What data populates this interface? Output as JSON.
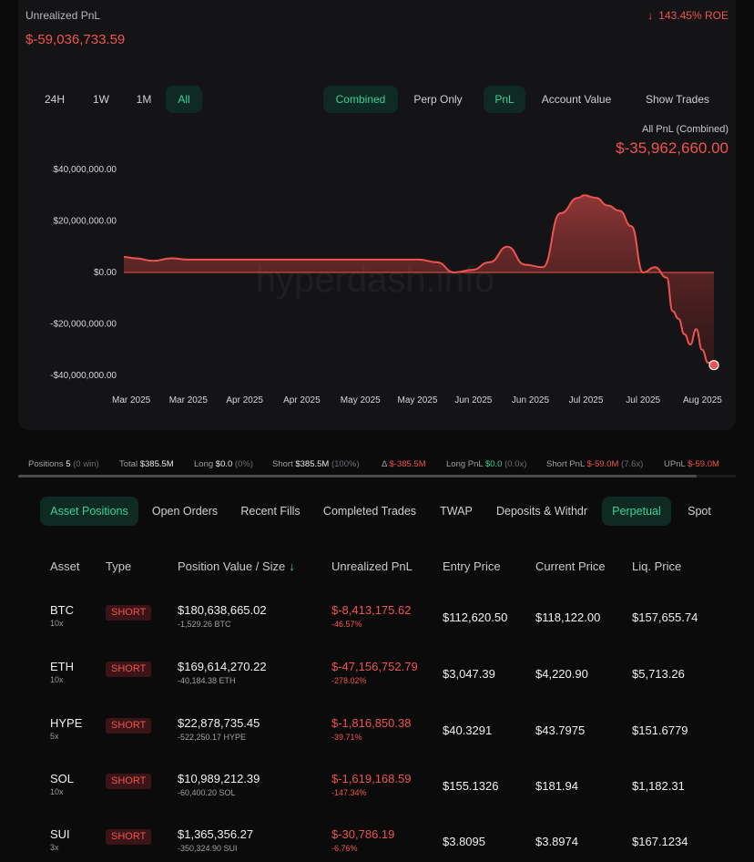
{
  "summary": {
    "unrealized_label": "Unrealized PnL",
    "unrealized_value": "$-59,036,733.59",
    "roe_arrow": "↓",
    "roe": "143.45% ROE"
  },
  "range_filters": [
    "24H",
    "1W",
    "1M",
    "All"
  ],
  "active_range": "All",
  "view_filters": [
    "Combined",
    "Perp Only"
  ],
  "metric_filters": [
    "PnL",
    "Account Value"
  ],
  "show_trades_label": "Show Trades",
  "chart_header": {
    "title": "All PnL (Combined)",
    "value": "$-35,962,660.00"
  },
  "chart_data": {
    "type": "area",
    "y_tick_labels": [
      "$40,000,000.00",
      "$20,000,000.00",
      "$0.00",
      "-$20,000,000.00",
      "-$40,000,000.00"
    ],
    "y_ticks": [
      40000000,
      20000000,
      0,
      -20000000,
      -40000000
    ],
    "ylim": [
      -40000000,
      40000000
    ],
    "x_tick_labels": [
      "Mar 2025",
      "Mar 2025",
      "Apr 2025",
      "Apr 2025",
      "May 2025",
      "May 2025",
      "Jun 2025",
      "Jun 2025",
      "Jul 2025",
      "Jul 2025",
      "Aug 2025"
    ],
    "x": [
      0,
      2,
      5,
      8,
      11,
      14,
      17,
      20,
      23,
      26,
      29,
      32,
      35,
      38,
      41,
      44,
      47,
      50,
      53,
      56,
      59,
      62,
      65,
      68,
      71,
      74,
      77,
      78,
      80,
      82,
      84,
      86,
      88,
      90,
      92,
      93,
      94,
      95,
      96,
      97,
      98,
      99,
      100
    ],
    "y": [
      6000000,
      5500000,
      4500000,
      5500000,
      5000000,
      5000000,
      5000000,
      5000000,
      5000000,
      5000000,
      5000000,
      5000000,
      5000000,
      5000000,
      5000000,
      5000000,
      5000000,
      5000000,
      4000000,
      0,
      1000000,
      4000000,
      10000000,
      3000000,
      2000000,
      23000000,
      29000000,
      30000000,
      29000000,
      26000000,
      24000000,
      18000000,
      0,
      2000000,
      -2000000,
      -15000000,
      -18000000,
      -24000000,
      -28000000,
      -22000000,
      -30000000,
      -35000000,
      -36000000
    ],
    "series": [
      {
        "name": "All PnL (Combined)",
        "color": "#ef5350"
      }
    ],
    "x_last_label": "Aug 2025",
    "final_value": -35962660,
    "watermark": "hyperdash.info"
  },
  "stats": {
    "positions_label": "Positions",
    "positions_value": "5",
    "positions_sub": "(0 win)",
    "total_label": "Total",
    "total_value": "$385.5M",
    "long_label": "Long",
    "long_value": "$0.0",
    "long_pct": "(0%)",
    "short_label": "Short",
    "short_value": "$385.5M",
    "short_pct": "(100%)",
    "delta_label": "Δ",
    "delta_value": "$-385.5M",
    "long_pnl_label": "Long PnL",
    "long_pnl_value": "$0.0",
    "long_pnl_sub": "(0.0x)",
    "short_pnl_label": "Short PnL",
    "short_pnl_value": "$-59.0M",
    "short_pnl_sub": "(7.6x)",
    "upnl_label": "UPnL",
    "upnl_value": "$-59.0M"
  },
  "tabs": [
    "Asset Positions",
    "Open Orders",
    "Recent Fills",
    "Completed Trades",
    "TWAP",
    "Deposits & Withdr",
    "Perpetual",
    "Spot"
  ],
  "active_tab": "Asset Positions",
  "table": {
    "headers": [
      "Asset",
      "Type",
      "Position Value / Size",
      "Unrealized PnL",
      "Entry Price",
      "Current Price",
      "Liq. Price"
    ],
    "sort_icon": "↓",
    "rows": [
      {
        "asset": "BTC",
        "leverage": "10x",
        "type": "SHORT",
        "value": "$180,638,665.02",
        "size": "-1,529.26 BTC",
        "upnl": "$-8,413,175.62",
        "upnl_pct": "-46.57%",
        "entry": "$112,620.50",
        "current": "$118,122.00",
        "liq": "$157,655.74"
      },
      {
        "asset": "ETH",
        "leverage": "10x",
        "type": "SHORT",
        "value": "$169,614,270.22",
        "size": "-40,184.38 ETH",
        "upnl": "$-47,156,752.79",
        "upnl_pct": "-278.02%",
        "entry": "$3,047.39",
        "current": "$4,220.90",
        "liq": "$5,713.26"
      },
      {
        "asset": "HYPE",
        "leverage": "5x",
        "type": "SHORT",
        "value": "$22,878,735.45",
        "size": "-522,250.17 HYPE",
        "upnl": "$-1,816,850.38",
        "upnl_pct": "-39.71%",
        "entry": "$40.3291",
        "current": "$43.7975",
        "liq": "$151.6779"
      },
      {
        "asset": "SOL",
        "leverage": "10x",
        "type": "SHORT",
        "value": "$10,989,212.39",
        "size": "-60,400.20 SOL",
        "upnl": "$-1,619,168.59",
        "upnl_pct": "-147.34%",
        "entry": "$155.1326",
        "current": "$181.94",
        "liq": "$1,182.31"
      },
      {
        "asset": "SUI",
        "leverage": "3x",
        "type": "SHORT",
        "value": "$1,365,356.27",
        "size": "-350,324.90 SUI",
        "upnl": "$-30,786.19",
        "upnl_pct": "-6.76%",
        "entry": "$3.8095",
        "current": "$3.8974",
        "liq": "$167.1234"
      }
    ]
  }
}
